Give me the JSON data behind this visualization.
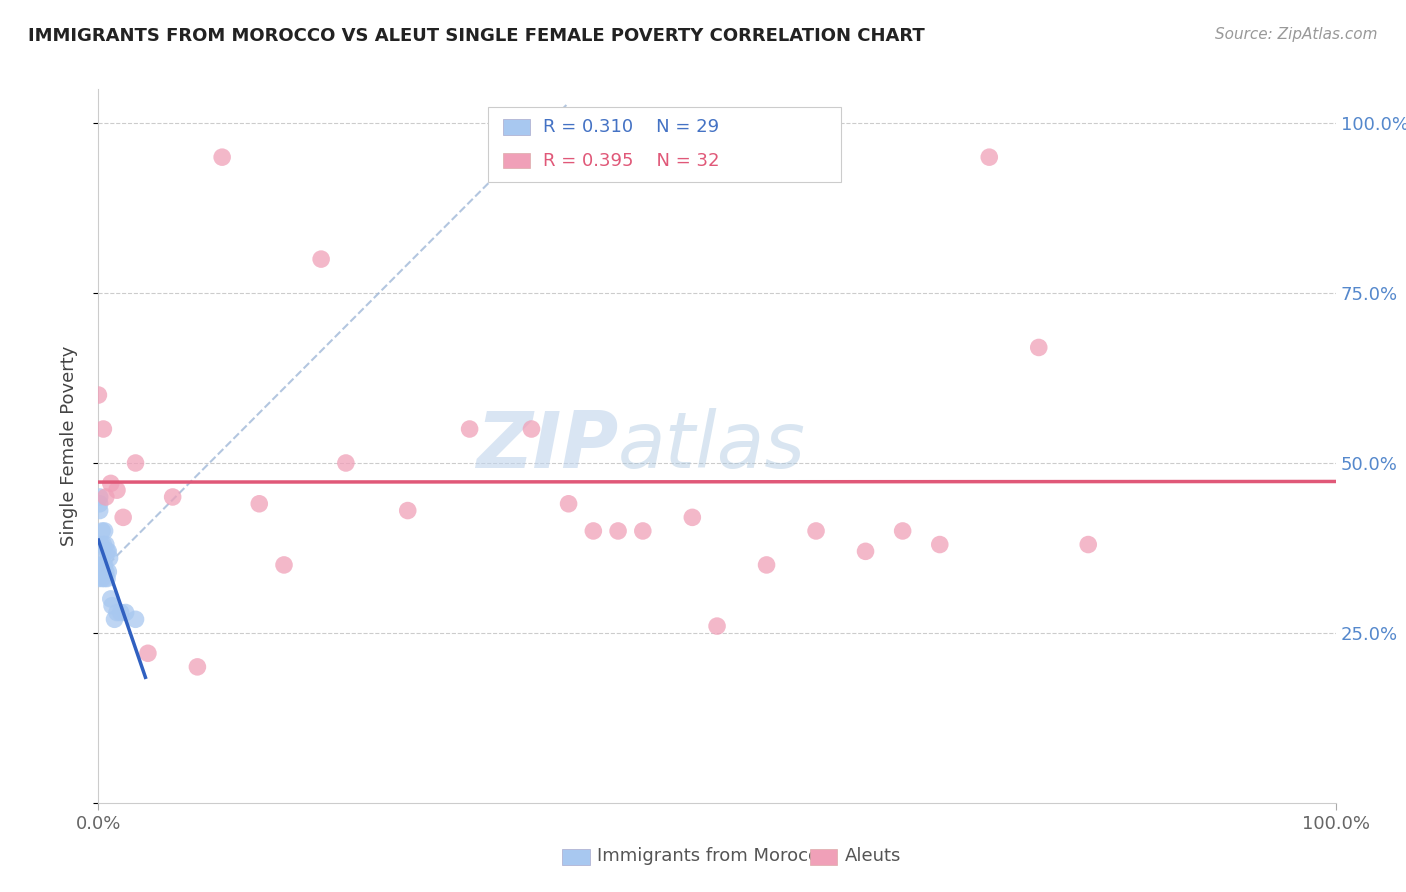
{
  "title": "IMMIGRANTS FROM MOROCCO VS ALEUT SINGLE FEMALE POVERTY CORRELATION CHART",
  "source": "Source: ZipAtlas.com",
  "ylabel": "Single Female Poverty",
  "legend_label1": "Immigrants from Morocco",
  "legend_label2": "Aleuts",
  "r1": "0.310",
  "n1": "29",
  "r2": "0.395",
  "n2": "32",
  "blue_color": "#A8C8F0",
  "pink_color": "#F0A0B8",
  "blue_line_color": "#3060C0",
  "pink_line_color": "#E05878",
  "blue_dash_color": "#A0B8D8",
  "morocco_x": [
    0.0,
    0.001,
    0.001,
    0.001,
    0.002,
    0.002,
    0.002,
    0.003,
    0.003,
    0.003,
    0.004,
    0.004,
    0.005,
    0.005,
    0.005,
    0.006,
    0.006,
    0.007,
    0.007,
    0.008,
    0.008,
    0.009,
    0.01,
    0.011,
    0.013,
    0.015,
    0.018,
    0.022,
    0.03
  ],
  "morocco_y": [
    0.33,
    0.43,
    0.44,
    0.45,
    0.34,
    0.35,
    0.38,
    0.33,
    0.37,
    0.4,
    0.35,
    0.38,
    0.33,
    0.35,
    0.4,
    0.34,
    0.38,
    0.33,
    0.37,
    0.34,
    0.37,
    0.36,
    0.3,
    0.29,
    0.27,
    0.28,
    0.28,
    0.28,
    0.27
  ],
  "aleut_x": [
    0.0,
    0.004,
    0.006,
    0.01,
    0.015,
    0.02,
    0.03,
    0.04,
    0.06,
    0.08,
    0.1,
    0.13,
    0.15,
    0.18,
    0.2,
    0.25,
    0.3,
    0.35,
    0.38,
    0.4,
    0.42,
    0.44,
    0.48,
    0.5,
    0.54,
    0.58,
    0.62,
    0.65,
    0.68,
    0.72,
    0.76,
    0.8
  ],
  "aleut_y": [
    0.6,
    0.55,
    0.45,
    0.47,
    0.46,
    0.42,
    0.5,
    0.22,
    0.45,
    0.2,
    0.95,
    0.44,
    0.35,
    0.8,
    0.5,
    0.43,
    0.55,
    0.55,
    0.44,
    0.4,
    0.4,
    0.4,
    0.42,
    0.26,
    0.35,
    0.4,
    0.37,
    0.4,
    0.38,
    0.95,
    0.67,
    0.38
  ],
  "xlim": [
    0.0,
    1.0
  ],
  "ylim": [
    0.0,
    1.05
  ],
  "ytick_vals": [
    0.0,
    0.25,
    0.5,
    0.75,
    1.0
  ],
  "ytick_labels_right": [
    "",
    "25.0%",
    "50.0%",
    "75.0%",
    "100.0%"
  ]
}
